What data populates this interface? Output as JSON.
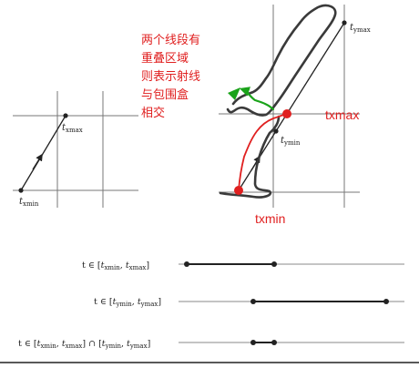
{
  "annotation": {
    "lines": [
      "两个线段有",
      "重叠区域",
      "则表示射线",
      "与包围盒",
      "相交"
    ]
  },
  "left_box": {
    "tmin": {
      "base": "t",
      "sub": "xmin"
    },
    "tmax": {
      "base": "t",
      "sub": "xmax"
    }
  },
  "right_box": {
    "tymin": {
      "base": "t",
      "sub": "ymin"
    },
    "tymax": {
      "base": "t",
      "sub": "ymax"
    },
    "red_txmax": "txmax",
    "red_txmin": "txmin"
  },
  "rows": [
    {
      "label": "t ∈ [t",
      "text": "t ∈ [txmin, txmax]"
    },
    {
      "label": "t ∈ [t",
      "text": "t ∈ [tymin, tymax]"
    },
    {
      "label": "t ∈ [t",
      "text": "t ∈ [txmin, txmax] ∩ [tymin, tymax]"
    }
  ],
  "colors": {
    "annotation": "#e02020",
    "scribble": "#3a3a3a",
    "green_arrow": "#1aa31a",
    "grid": "#777777"
  }
}
